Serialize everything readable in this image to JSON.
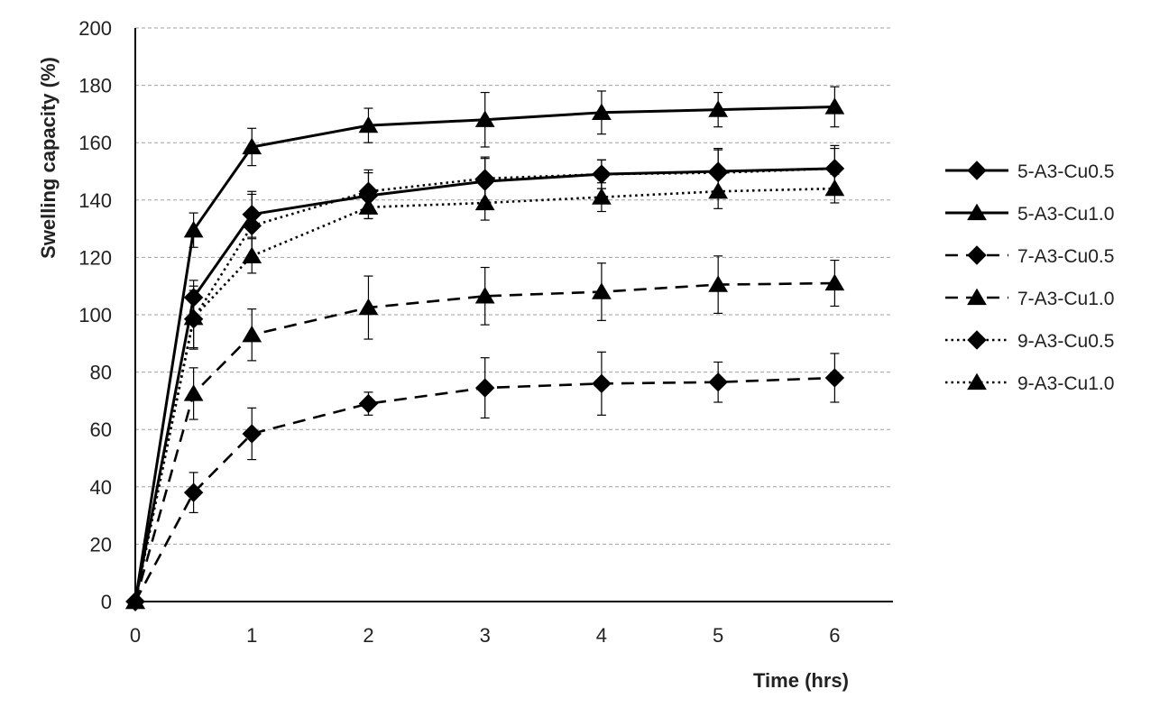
{
  "chart_data": {
    "type": "line",
    "title": "",
    "xlabel": "Time (hrs)",
    "ylabel": "Swelling capacity (%)",
    "xlim": [
      0,
      6.5
    ],
    "ylim": [
      0,
      200
    ],
    "xticks": [
      0,
      1,
      2,
      3,
      4,
      5,
      6
    ],
    "yticks": [
      0,
      20,
      40,
      60,
      80,
      100,
      120,
      140,
      160,
      180,
      200
    ],
    "grid": "horizontal-dashed",
    "legend_position": "right",
    "x": [
      0,
      0.5,
      1,
      2,
      3,
      4,
      5,
      6
    ],
    "series": [
      {
        "name": "5-A3-Cu0.5",
        "marker": "diamond",
        "line": "solid",
        "values": [
          0,
          106,
          135,
          141.5,
          146.5,
          149,
          150,
          151
        ],
        "errors": [
          0,
          6,
          8,
          8,
          8,
          5,
          8,
          8
        ]
      },
      {
        "name": "5-A3-Cu1.0",
        "marker": "triangle",
        "line": "solid",
        "values": [
          0,
          129.5,
          158.5,
          166,
          168,
          170.5,
          171.5,
          172.5
        ],
        "errors": [
          0,
          6,
          6.5,
          6,
          9.5,
          7.5,
          6,
          7
        ]
      },
      {
        "name": "7-A3-Cu0.5",
        "marker": "diamond",
        "line": "dashed",
        "values": [
          0,
          38,
          58.5,
          69,
          74.5,
          76,
          76.5,
          78
        ],
        "errors": [
          0,
          7,
          9,
          4,
          10.5,
          11,
          7,
          8.5
        ]
      },
      {
        "name": "7-A3-Cu1.0",
        "marker": "triangle",
        "line": "dashed",
        "values": [
          0,
          72.5,
          93,
          102.5,
          106.5,
          108,
          110.5,
          111
        ],
        "errors": [
          0,
          9,
          9,
          11,
          10,
          10,
          10,
          8
        ]
      },
      {
        "name": "9-A3-Cu0.5",
        "marker": "diamond",
        "line": "dotted",
        "values": [
          0,
          98.5,
          131,
          143,
          147.5,
          149,
          149.5,
          151
        ],
        "errors": [
          0,
          10,
          11,
          7.5,
          7.5,
          5,
          8,
          7
        ]
      },
      {
        "name": "9-A3-Cu1.0",
        "marker": "triangle",
        "line": "dotted",
        "values": [
          0,
          99,
          120.5,
          137.5,
          139,
          141,
          143,
          144
        ],
        "errors": [
          0,
          11,
          6,
          4,
          6,
          5,
          6,
          5
        ]
      }
    ],
    "colors": {
      "line": "#000000",
      "grid": "#a0a0a0",
      "axis": "#000000"
    }
  }
}
